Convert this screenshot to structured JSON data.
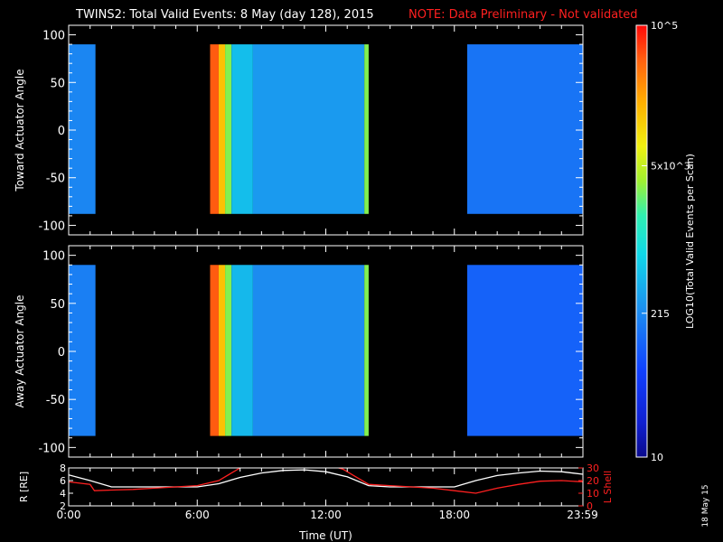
{
  "header": {
    "title": "TWINS2: Total Valid Events:  8 May (day 128), 2015",
    "note": "NOTE: Data Preliminary - Not validated"
  },
  "colors": {
    "note": "#ff2020",
    "lshell": "#ff2020",
    "radius": "#ffffff",
    "axes": "#ffffff",
    "background": "#000000"
  },
  "colorbar": {
    "label": "LOG10(Total Valid Events per Scan)",
    "range": [
      10,
      100000
    ],
    "ticks": [
      {
        "value": 100000,
        "text": "10^5"
      },
      {
        "value": 5000,
        "text": "5x10^3"
      },
      {
        "value": 215,
        "text": "215"
      },
      {
        "value": 10,
        "text": "10"
      }
    ]
  },
  "footer": {
    "stamp": "18 May 15"
  },
  "chart_data": [
    {
      "type": "heatmap",
      "ylabel": "Toward Actuator Angle",
      "xlim": [
        0,
        24
      ],
      "ylim": [
        -110,
        110
      ],
      "yticks": [
        -100,
        -50,
        0,
        50,
        100
      ],
      "angle_range": [
        -88,
        90
      ],
      "segments": [
        {
          "start": 0.0,
          "end": 1.25,
          "level": 200
        },
        {
          "start": 6.6,
          "end": 7.0,
          "level": 50000
        },
        {
          "start": 7.0,
          "end": 7.3,
          "level": 15000
        },
        {
          "start": 7.3,
          "end": 7.6,
          "level": 3000
        },
        {
          "start": 7.6,
          "end": 8.6,
          "level": 500
        },
        {
          "start": 8.6,
          "end": 13.8,
          "level": 280
        },
        {
          "start": 13.8,
          "end": 14.0,
          "level": 3000
        },
        {
          "start": 18.6,
          "end": 24.0,
          "level": 150
        }
      ]
    },
    {
      "type": "heatmap",
      "ylabel": "Away Actuator Angle",
      "xlim": [
        0,
        24
      ],
      "ylim": [
        -110,
        110
      ],
      "yticks": [
        -100,
        -50,
        0,
        50,
        100
      ],
      "angle_range": [
        -88,
        90
      ],
      "segments": [
        {
          "start": 0.0,
          "end": 1.25,
          "level": 180
        },
        {
          "start": 6.6,
          "end": 7.0,
          "level": 50000
        },
        {
          "start": 7.0,
          "end": 7.3,
          "level": 15000
        },
        {
          "start": 7.3,
          "end": 7.6,
          "level": 3000
        },
        {
          "start": 7.6,
          "end": 8.6,
          "level": 450
        },
        {
          "start": 8.6,
          "end": 13.8,
          "level": 220
        },
        {
          "start": 13.8,
          "end": 14.0,
          "level": 3000
        },
        {
          "start": 18.6,
          "end": 24.0,
          "level": 110
        }
      ]
    },
    {
      "type": "line",
      "xlabel": "Time (UT)",
      "ylabel": "R [RE]",
      "ylabel_right": "L Shell",
      "xlim": [
        0,
        24
      ],
      "ylim": [
        2,
        8
      ],
      "ylim_right": [
        0,
        30
      ],
      "yticks": [
        2,
        4,
        6,
        8
      ],
      "yticks_right": [
        0,
        10,
        20,
        30
      ],
      "xticks": [
        {
          "value": 0,
          "label": "0:00"
        },
        {
          "value": 6,
          "label": "6:00"
        },
        {
          "value": 12,
          "label": "12:00"
        },
        {
          "value": 18,
          "label": "18:00"
        },
        {
          "value": 23.98,
          "label": "23:59"
        }
      ],
      "series": [
        {
          "name": "R",
          "axis": "left",
          "x": [
            0,
            1,
            2,
            3,
            4,
            5,
            6,
            7,
            8,
            9,
            10,
            11,
            12,
            13,
            14,
            15,
            16,
            17,
            18,
            19,
            20,
            21,
            22,
            23,
            24
          ],
          "y": [
            6.9,
            6.0,
            5.0,
            5.0,
            5.0,
            5.0,
            5.0,
            5.5,
            6.5,
            7.2,
            7.6,
            7.7,
            7.4,
            6.6,
            5.2,
            5.0,
            5.0,
            5.0,
            5.0,
            6.0,
            6.8,
            7.2,
            7.5,
            7.4,
            7.0
          ]
        },
        {
          "name": "L Shell",
          "axis": "right",
          "x": [
            0,
            1,
            1.2,
            2,
            3,
            4,
            5,
            6,
            7,
            7.6,
            8.0,
            8.3,
            12.4,
            12.8,
            13.3,
            14,
            15,
            16,
            17,
            18,
            19,
            20,
            21,
            22,
            23,
            24
          ],
          "y": [
            19,
            17,
            12,
            12.5,
            13,
            14,
            15,
            16,
            20,
            26,
            30,
            31,
            31,
            29,
            24,
            17,
            16,
            15,
            14,
            12,
            10,
            14,
            17,
            19.5,
            20,
            19
          ]
        }
      ]
    }
  ]
}
